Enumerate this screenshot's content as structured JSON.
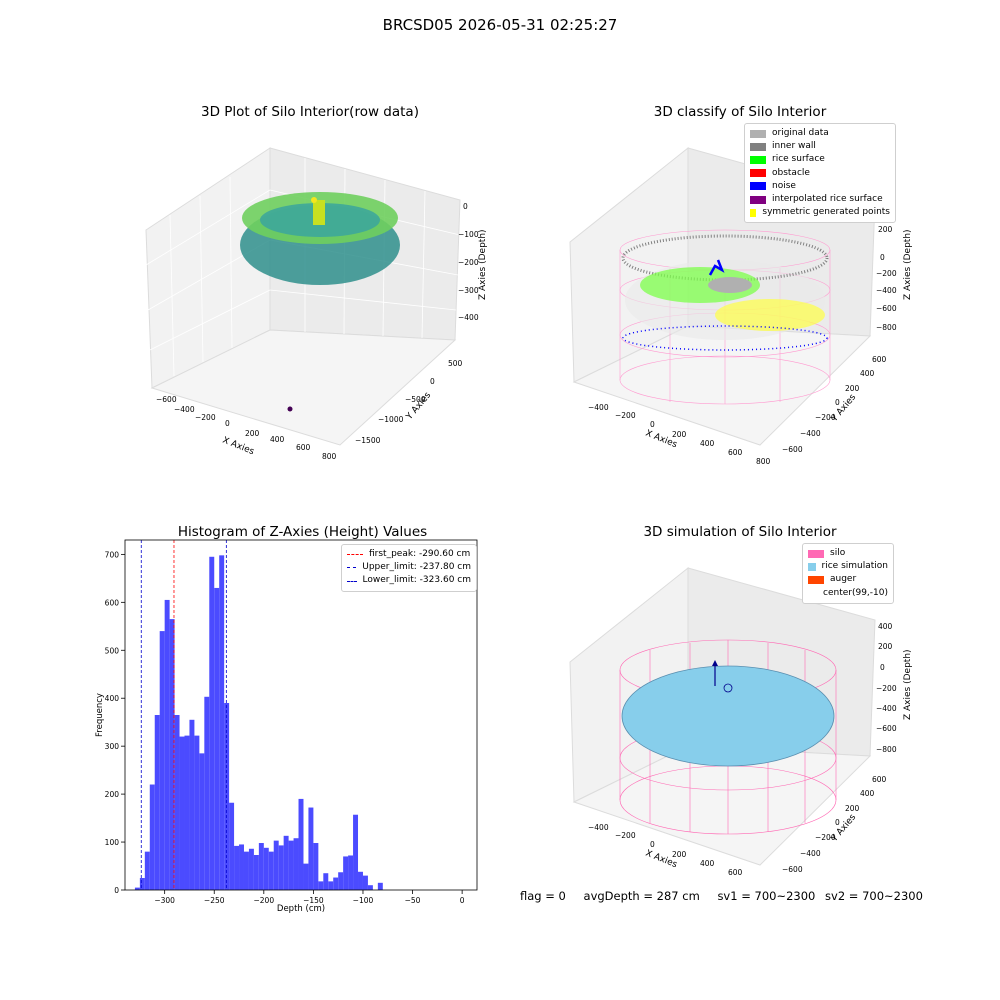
{
  "suptitle": "BRCSD05 2026-05-31 02:25:27",
  "panels": {
    "raw": {
      "title": "3D Plot of Silo Interior(row data)",
      "xlabel": "X Axies",
      "ylabel": "Y Axies",
      "zlabel": "Z Axies (Depth)",
      "xticks": [
        "−600",
        "−400",
        "−200",
        "0",
        "200",
        "400",
        "600",
        "800"
      ],
      "yticks": [
        "500",
        "0",
        "−500",
        "−1000",
        "−1500"
      ],
      "zticks": [
        "0",
        "−100",
        "−200",
        "−300",
        "−400"
      ]
    },
    "classify": {
      "title": "3D classify of Silo Interior",
      "xlabel": "X Axies",
      "ylabel": "Y Axies",
      "zlabel": "Z Axies (Depth)",
      "xticks": [
        "−400",
        "−200",
        "0",
        "200",
        "400",
        "600",
        "800"
      ],
      "yticks": [
        "600",
        "400",
        "200",
        "0",
        "−200",
        "−400",
        "−600"
      ],
      "zticks": [
        "200",
        "0",
        "−200",
        "−400",
        "−600",
        "−800"
      ],
      "legend": [
        {
          "label": "original data",
          "color": "#b0b0b0"
        },
        {
          "label": "inner wall",
          "color": "#808080"
        },
        {
          "label": "rice surface",
          "color": "#00ff00"
        },
        {
          "label": "obstacle",
          "color": "#ff0000"
        },
        {
          "label": "noise",
          "color": "#0000ff"
        },
        {
          "label": "interpolated rice surface",
          "color": "#800080"
        },
        {
          "label": "symmetric generated points",
          "color": "#ffff00"
        }
      ]
    },
    "simulation": {
      "title": "3D simulation of Silo Interior",
      "xlabel": "X Axies",
      "ylabel": "Y Axies",
      "zlabel": "Z Axies (Depth)",
      "xticks": [
        "−400",
        "−200",
        "0",
        "200",
        "400",
        "600"
      ],
      "yticks": [
        "600",
        "400",
        "200",
        "0",
        "−200",
        "−400",
        "−600"
      ],
      "zticks": [
        "400",
        "200",
        "0",
        "−200",
        "−400",
        "−600",
        "−800"
      ],
      "legend": [
        {
          "label": "silo",
          "color": "#ff69b4"
        },
        {
          "label": "rice simulation",
          "color": "#87ceeb"
        },
        {
          "label": "auger",
          "color": "#ff4500"
        },
        {
          "label": "center(99,-10)",
          "color": ""
        }
      ]
    }
  },
  "status": {
    "flag": "flag = 0",
    "avg": "avgDepth = 287 cm",
    "sv1": "sv1 = 700~2300",
    "sv2": "sv2 = 700~2300"
  },
  "chart_data": {
    "type": "bar",
    "title": "Histogram of Z-Axies (Height) Values",
    "xlabel": "Depth (cm)",
    "ylabel": "Frequency",
    "xlim": [
      -340,
      15
    ],
    "ylim": [
      0,
      730
    ],
    "xticks": [
      -300,
      -250,
      -200,
      -150,
      -100,
      -50,
      0
    ],
    "yticks": [
      0,
      100,
      200,
      300,
      400,
      500,
      600,
      700
    ],
    "bin_width": 5,
    "bin_start": -330,
    "values": [
      5,
      25,
      80,
      220,
      365,
      540,
      605,
      565,
      365,
      320,
      322,
      355,
      322,
      285,
      403,
      695,
      630,
      698,
      390,
      182,
      92,
      95,
      80,
      86,
      73,
      98,
      88,
      80,
      103,
      93,
      113,
      103,
      108,
      190,
      55,
      172,
      98,
      18,
      35,
      18,
      26,
      37,
      70,
      72,
      157,
      38,
      30,
      10,
      0,
      15
    ],
    "lines": [
      {
        "label": "first_peak: -290.60 cm",
        "x": -290.6,
        "color": "#ff0000"
      },
      {
        "label": "Upper_limit: -237.80 cm",
        "x": -237.8,
        "color": "#0000cc"
      },
      {
        "label": "Lower_limit: -323.60 cm",
        "x": -323.6,
        "color": "#0000cc"
      }
    ],
    "bar_color": "#4b4bff"
  }
}
